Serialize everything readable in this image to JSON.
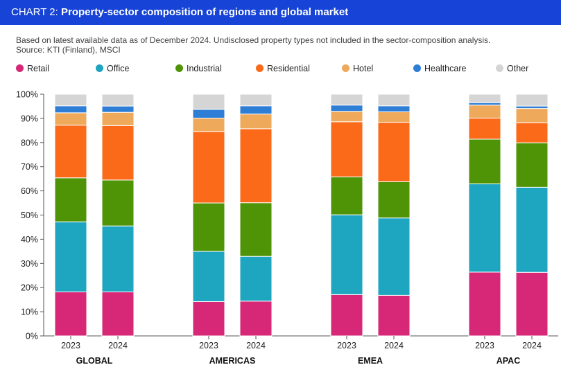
{
  "header": {
    "label": "CHART 2:",
    "title": "Property-sector composition of regions and global market"
  },
  "subtitle": {
    "line1": "Based on latest available data as of December 2024. Undisclosed property types not included in the sector-composition analysis.",
    "line2": "Source: KTI (Finland), MSCI"
  },
  "chart_data": {
    "type": "bar",
    "stacked": true,
    "title": "Property-sector composition of regions and global market",
    "ylabel": "",
    "ylim": [
      0,
      100
    ],
    "yticks": [
      "0%",
      "10%",
      "20%",
      "30%",
      "40%",
      "50%",
      "60%",
      "70%",
      "80%",
      "90%",
      "100%"
    ],
    "groups": [
      "GLOBAL",
      "AMERICAS",
      "EMEA",
      "APAC"
    ],
    "years": [
      "2023",
      "2024"
    ],
    "categories": [
      "GLOBAL 2023",
      "GLOBAL 2024",
      "AMERICAS 2023",
      "AMERICAS 2024",
      "EMEA 2023",
      "EMEA 2024",
      "APAC 2023",
      "APAC 2024"
    ],
    "series": [
      {
        "name": "Retail",
        "color": "#d62877",
        "values": [
          18.2,
          18.2,
          14.2,
          14.4,
          17.1,
          16.8,
          26.4,
          26.3
        ]
      },
      {
        "name": "Office",
        "color": "#1ea5c0",
        "values": [
          29.0,
          27.3,
          20.8,
          18.5,
          33.0,
          32.0,
          36.5,
          35.2
        ]
      },
      {
        "name": "Industrial",
        "color": "#4f9406",
        "values": [
          18.2,
          19.0,
          20.0,
          22.2,
          15.7,
          15.0,
          18.5,
          18.4
        ]
      },
      {
        "name": "Residential",
        "color": "#fa6a19",
        "values": [
          21.8,
          22.5,
          29.6,
          30.6,
          22.8,
          24.6,
          8.7,
          8.3
        ]
      },
      {
        "name": "Hotel",
        "color": "#efa95b",
        "values": [
          5.1,
          5.5,
          5.5,
          6.1,
          4.3,
          4.3,
          5.4,
          5.9
        ]
      },
      {
        "name": "Healthcare",
        "color": "#2e7ed6",
        "values": [
          2.9,
          2.6,
          3.6,
          3.4,
          2.6,
          2.5,
          1.0,
          1.0
        ]
      },
      {
        "name": "Other",
        "color": "#d5d5d5",
        "values": [
          4.8,
          4.9,
          6.3,
          4.8,
          4.5,
          4.8,
          3.5,
          4.9
        ]
      }
    ],
    "legend_position": "top",
    "grid": false
  }
}
